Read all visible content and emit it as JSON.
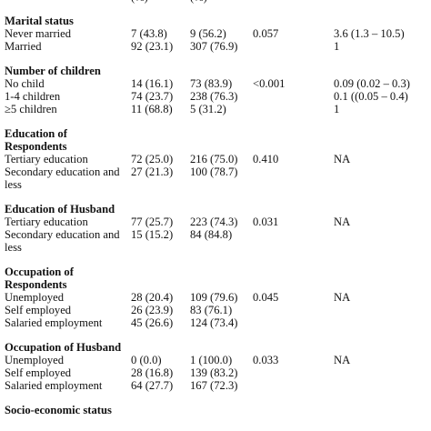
{
  "top_clipped": {
    "c2": "(%)",
    "c3": "(%)"
  },
  "sections": [
    {
      "heading": [
        "Marital status"
      ],
      "rows": [
        {
          "label": "Never married",
          "c2": "7 (43.8)",
          "c3": "9 (56.2)",
          "p": "0.057",
          "or": "3.6 (1.3 – 10.5)"
        },
        {
          "label": "Married",
          "c2": "92 (23.1)",
          "c3": "307 (76.9)",
          "p": "",
          "or": "1"
        }
      ]
    },
    {
      "heading": [
        "Number of children"
      ],
      "rows": [
        {
          "label": "No child",
          "c2": "14 (16.1)",
          "c3": "73 (83.9)",
          "p": "<0.001",
          "or": "0.09 (0.02 – 0.3)"
        },
        {
          "label": "1-4 children",
          "c2": "74 (23.7)",
          "c3": "238 (76.3)",
          "p": "",
          "or": "0.1 ((0.05 – 0.4)"
        },
        {
          "label": "≥5 children",
          "c2": "11 (68.8)",
          "c3": "5 (31.2)",
          "p": "",
          "or": "1"
        }
      ]
    },
    {
      "heading": [
        "Education of",
        "Respondents"
      ],
      "rows": [
        {
          "label": "Tertiary education",
          "c2": "72 (25.0)",
          "c3": "216 (75.0)",
          "p": "0.410",
          "or": "NA"
        },
        {
          "label": "Secondary education and",
          "c2": "27 (21.3)",
          "c3": "100 (78.7)",
          "p": "",
          "or": ""
        },
        {
          "label": "less",
          "c2": "",
          "c3": "",
          "p": "",
          "or": ""
        }
      ]
    },
    {
      "heading": [
        "Education of Husband"
      ],
      "rows": [
        {
          "label": "Tertiary education",
          "c2": "77 (25.7)",
          "c3": "223 (74.3)",
          "p": "0.031",
          "or": "NA"
        },
        {
          "label": "Secondary education and",
          "c2": "15 (15.2)",
          "c3": "84 (84.8)",
          "p": "",
          "or": ""
        },
        {
          "label": "less",
          "c2": "",
          "c3": "",
          "p": "",
          "or": ""
        }
      ]
    },
    {
      "heading": [
        "Occupation of",
        "Respondents"
      ],
      "rows": [
        {
          "label": "Unemployed",
          "c2": "28 (20.4)",
          "c3": "109 (79.6)",
          "p": "0.045",
          "or": "NA"
        },
        {
          "label": "Self employed",
          "c2": "26 (23.9)",
          "c3": "83 (76.1)",
          "p": "",
          "or": ""
        },
        {
          "label": "Salaried employment",
          "c2": "45 (26.6)",
          "c3": "124 (73.4)",
          "p": "",
          "or": ""
        }
      ]
    },
    {
      "heading": [
        "Occupation of Husband"
      ],
      "rows": [
        {
          "label": "Unemployed",
          "c2": "0 (0.0)",
          "c3": "1 (100.0)",
          "p": "0.033",
          "or": "NA"
        },
        {
          "label": "Self employed",
          "c2": "28 (16.8)",
          "c3": "139 (83.2)",
          "p": "",
          "or": ""
        },
        {
          "label": "Salaried employment",
          "c2": "64 (27.7)",
          "c3": "167 (72.3)",
          "p": "",
          "or": ""
        }
      ]
    },
    {
      "heading": [
        "Socio-economic status"
      ],
      "rows": []
    }
  ]
}
